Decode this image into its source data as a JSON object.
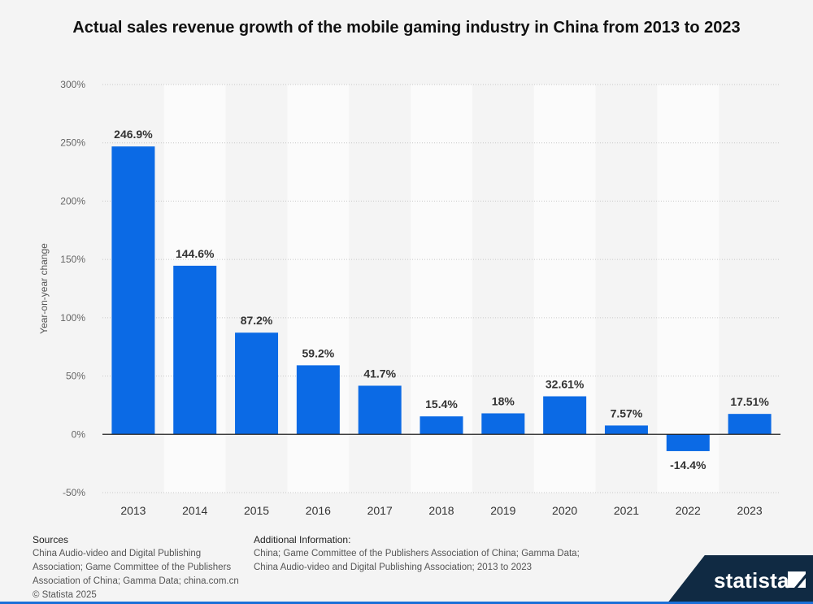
{
  "title": "Actual sales revenue growth of the mobile gaming industry in China from 2013 to 2023",
  "chart_data": {
    "type": "bar",
    "categories": [
      "2013",
      "2014",
      "2015",
      "2016",
      "2017",
      "2018",
      "2019",
      "2020",
      "2021",
      "2022",
      "2023"
    ],
    "values": [
      246.9,
      144.6,
      87.2,
      59.2,
      41.7,
      15.4,
      18,
      32.61,
      7.57,
      -14.4,
      17.51
    ],
    "data_labels": [
      "246.9%",
      "144.6%",
      "87.2%",
      "59.2%",
      "41.7%",
      "15.4%",
      "18%",
      "32.61%",
      "7.57%",
      "-14.4%",
      "17.51%"
    ],
    "ylabel": "Year-on-year change",
    "ylim": [
      -50,
      300
    ],
    "yticks": [
      -50,
      0,
      50,
      100,
      150,
      200,
      250,
      300
    ],
    "ytick_labels": [
      "-50%",
      "0%",
      "50%",
      "100%",
      "150%",
      "200%",
      "250%",
      "300%"
    ],
    "grid": true,
    "bar_color": "#0b6ae5",
    "legend": "none"
  },
  "footer": {
    "sources_heading": "Sources",
    "sources_text": "China Audio-video and Digital Publishing Association; Game Committee of the Publishers Association of China; Gamma Data; china.com.cn",
    "copyright": "© Statista 2025",
    "additional_heading": "Additional Information:",
    "additional_text": "China; Game Committee of the Publishers Association of China; Gamma Data; China Audio-video and Digital Publishing Association; 2013 to 2023"
  },
  "brand": {
    "name": "statista",
    "logo_icon": "statista-flag-icon"
  },
  "colors": {
    "bar": "#0b6ae5",
    "brand_bg": "#102a43",
    "accent": "#1a6fd8"
  }
}
